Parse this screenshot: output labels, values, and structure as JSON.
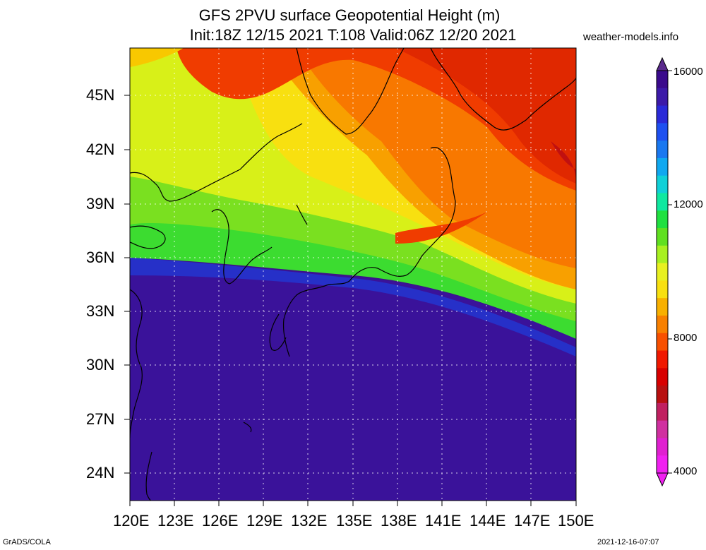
{
  "header": {
    "title_line1": "GFS 2PVU surface Geopotential Height (m)",
    "title_line2": "Init:18Z 12/15 2021 T:108 Valid:06Z 12/20 2021",
    "site": "weather-models.info"
  },
  "map": {
    "lat_labels": [
      "45N",
      "42N",
      "39N",
      "36N",
      "33N",
      "30N",
      "27N",
      "24N"
    ],
    "lon_labels": [
      "120E",
      "123E",
      "126E",
      "129E",
      "132E",
      "135E",
      "138E",
      "141E",
      "144E",
      "147E",
      "150E"
    ]
  },
  "colorbar": {
    "labels": [
      "16000",
      "12000",
      "8000",
      "4000"
    ],
    "colors_top_to_bottom": [
      "#3a0a8c",
      "#3c1aa8",
      "#2a2ad8",
      "#1e50f0",
      "#1a78f0",
      "#10a8f0",
      "#10d0d8",
      "#10e8a0",
      "#20e040",
      "#60e020",
      "#a8f020",
      "#e8f020",
      "#f8e010",
      "#f8b000",
      "#f88000",
      "#f85000",
      "#f01800",
      "#d80000",
      "#b81010",
      "#c02060",
      "#d030a0",
      "#e020d0",
      "#f020f0"
    ],
    "arrow_top_color": "#5a2a8c",
    "arrow_bottom_color": "#f020f0"
  },
  "footer": {
    "left": "GrADS/COLA",
    "right": "2021-12-16-07:07"
  }
}
